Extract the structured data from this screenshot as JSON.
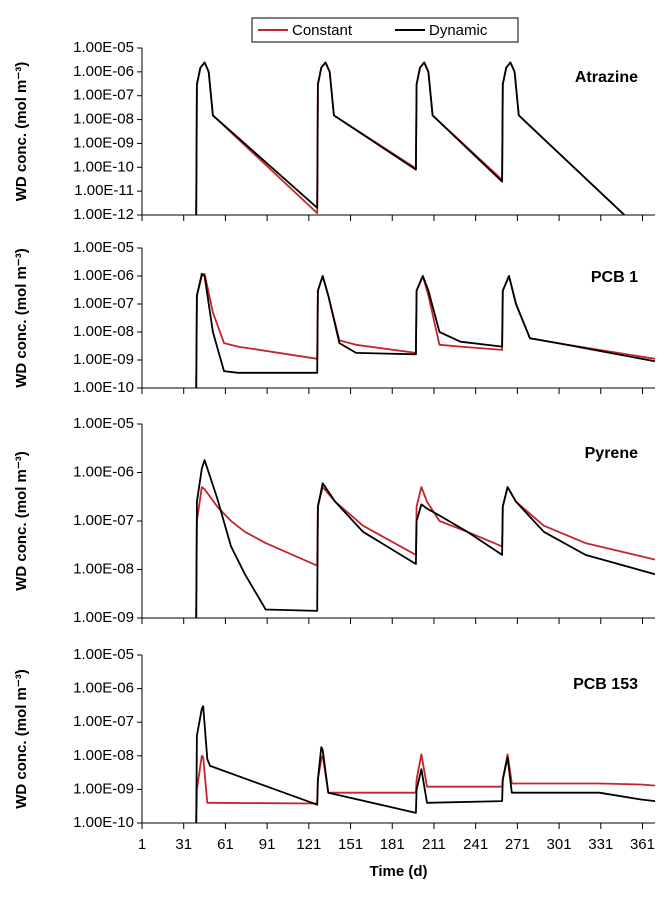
{
  "chart_data": [
    {
      "type": "line",
      "title": "Atrazine",
      "ylabel": "WD conc. (mol m⁻³)",
      "log_scale": true,
      "ylim": [
        1e-12,
        1e-05
      ],
      "yticks": [
        {
          "value": 1e-12,
          "label": "1.00E-12"
        },
        {
          "value": 1e-11,
          "label": "1.00E-11"
        },
        {
          "value": 1e-10,
          "label": "1.00E-10"
        },
        {
          "value": 1e-09,
          "label": "1.00E-09"
        },
        {
          "value": 1e-08,
          "label": "1.00E-08"
        },
        {
          "value": 1e-07,
          "label": "1.00E-07"
        },
        {
          "value": 1e-06,
          "label": "1.00E-06"
        },
        {
          "value": 1e-05,
          "label": "1.00E-05"
        }
      ],
      "x": [
        40,
        40.5,
        43,
        46,
        49,
        52,
        127,
        127.5,
        130,
        133,
        136,
        139,
        198,
        198.5,
        201,
        204,
        207,
        210,
        260,
        260.5,
        263,
        266,
        269,
        272,
        348
      ],
      "series": [
        {
          "name": "Constant",
          "color": "#c0262b",
          "values": [
            1e-12,
            3e-07,
            1.5e-06,
            2.5e-06,
            1e-06,
            1.5e-08,
            1.2e-12,
            3e-07,
            1.5e-06,
            2.5e-06,
            1e-06,
            1.5e-08,
            9e-11,
            3e-07,
            1.5e-06,
            2.5e-06,
            1e-06,
            1.5e-08,
            3e-11,
            3e-07,
            1.5e-06,
            2.5e-06,
            1e-06,
            1.5e-08,
            1e-12
          ]
        },
        {
          "name": "Dynamic",
          "color": "#000000",
          "values": [
            1e-12,
            3e-07,
            1.5e-06,
            2.5e-06,
            1e-06,
            1.5e-08,
            2e-12,
            3e-07,
            1.5e-06,
            2.5e-06,
            1e-06,
            1.5e-08,
            8e-11,
            3e-07,
            1.5e-06,
            2.5e-06,
            1e-06,
            1.5e-08,
            2.5e-11,
            3e-07,
            1.5e-06,
            2.5e-06,
            1e-06,
            1.5e-08,
            1e-12
          ]
        }
      ]
    },
    {
      "type": "line",
      "title": "PCB 1",
      "ylabel": "WD conc. (mol m⁻³)",
      "log_scale": true,
      "ylim": [
        1e-10,
        1e-05
      ],
      "yticks": [
        {
          "value": 1e-10,
          "label": "1.00E-10"
        },
        {
          "value": 1e-09,
          "label": "1.00E-09"
        },
        {
          "value": 1e-08,
          "label": "1.00E-08"
        },
        {
          "value": 1e-07,
          "label": "1.00E-07"
        },
        {
          "value": 1e-06,
          "label": "1.00E-06"
        },
        {
          "value": 1e-05,
          "label": "1.00E-05"
        }
      ],
      "x": [
        40,
        40.5,
        44,
        46,
        52,
        60,
        70,
        127,
        127.5,
        131,
        135,
        143,
        155,
        198,
        198.5,
        203,
        207,
        215,
        230,
        260,
        260.5,
        265,
        270,
        280,
        300,
        370
      ],
      "series": [
        {
          "color": "#c0262b",
          "values": [
            1e-10,
            2e-07,
            1e-06,
            1.2e-06,
            5e-08,
            4e-09,
            3e-09,
            1.1e-09,
            3e-07,
            1e-06,
            2e-07,
            5e-09,
            3.5e-09,
            1.8e-09,
            3e-07,
            1e-06,
            2e-07,
            3.5e-09,
            3e-09,
            2.3e-09,
            3e-07,
            1e-06,
            1e-07,
            6e-09,
            4e-09,
            1.1e-09
          ]
        },
        {
          "color": "#000000",
          "values": [
            1e-10,
            2e-07,
            1.2e-06,
            1e-06,
            1e-08,
            4e-10,
            3.5e-10,
            3.5e-10,
            3e-07,
            1e-06,
            2e-07,
            4e-09,
            1.8e-09,
            1.6e-09,
            3e-07,
            1e-06,
            3e-07,
            1e-08,
            4.5e-09,
            3e-09,
            3e-07,
            1e-06,
            1e-07,
            6e-09,
            4e-09,
            9e-10
          ]
        }
      ]
    },
    {
      "type": "line",
      "title": "Pyrene",
      "ylabel": "WD conc. (mol m⁻³)",
      "log_scale": true,
      "ylim": [
        1e-09,
        1e-05
      ],
      "yticks": [
        {
          "value": 1e-09,
          "label": "1.00E-09"
        },
        {
          "value": 1e-08,
          "label": "1.00E-08"
        },
        {
          "value": 1e-07,
          "label": "1.00E-07"
        },
        {
          "value": 1e-06,
          "label": "1.00E-06"
        },
        {
          "value": 1e-05,
          "label": "1.00E-05"
        }
      ],
      "x": [
        40,
        40.5,
        44,
        46,
        55,
        65,
        75,
        90,
        127,
        127.5,
        131,
        140,
        160,
        198,
        198.5,
        202,
        206,
        215,
        235,
        260,
        260.5,
        264,
        270,
        290,
        320,
        370
      ],
      "series": [
        {
          "color": "#c0262b",
          "values": [
            1e-09,
            1e-07,
            5e-07,
            4.5e-07,
            2e-07,
            1e-07,
            6e-08,
            3.5e-08,
            1.2e-08,
            2e-07,
            5e-07,
            2.5e-07,
            8e-08,
            2e-08,
            2e-07,
            5e-07,
            2.5e-07,
            1e-07,
            6e-08,
            3e-08,
            2e-07,
            5e-07,
            2.5e-07,
            8e-08,
            3.5e-08,
            1.6e-08
          ]
        },
        {
          "color": "#000000",
          "values": [
            1e-09,
            2.5e-07,
            1.2e-06,
            1.8e-06,
            3e-07,
            3e-08,
            8e-09,
            1.5e-09,
            1.4e-09,
            2e-07,
            6e-07,
            2.5e-07,
            6e-08,
            1.3e-08,
            1e-07,
            2.2e-07,
            1.8e-07,
            1.3e-07,
            6e-08,
            2e-08,
            2e-07,
            5e-07,
            2.5e-07,
            6e-08,
            2e-08,
            8e-09
          ]
        }
      ]
    },
    {
      "type": "line",
      "title": "PCB 153",
      "ylabel": "WD conc. (mol m⁻³)",
      "xlabel": "Time (d)",
      "log_scale": true,
      "ylim": [
        1e-10,
        1e-05
      ],
      "yticks": [
        {
          "value": 1e-10,
          "label": "1.00E-10"
        },
        {
          "value": 1e-09,
          "label": "1.00E-09"
        },
        {
          "value": 1e-08,
          "label": "1.00E-08"
        },
        {
          "value": 1e-07,
          "label": "1.00E-07"
        },
        {
          "value": 1e-06,
          "label": "1.00E-06"
        },
        {
          "value": 1e-05,
          "label": "1.00E-05"
        }
      ],
      "xlim": [
        1,
        370
      ],
      "xticks": [
        1,
        31,
        61,
        91,
        121,
        151,
        181,
        211,
        241,
        271,
        301,
        331,
        361
      ],
      "x": [
        40,
        40.5,
        44,
        45,
        48,
        50,
        127,
        127.5,
        130,
        131,
        135,
        198,
        198.5,
        202,
        206,
        260,
        260.5,
        264,
        267,
        330,
        360,
        370
      ],
      "series": [
        {
          "color": "#c0262b",
          "values": [
            1e-10,
            1e-09,
            1e-08,
            9e-09,
            4e-10,
            4e-10,
            3.8e-10,
            2e-09,
            8e-09,
            1e-08,
            8e-10,
            8e-10,
            2e-09,
            1.1e-08,
            1.2e-09,
            1.2e-09,
            2e-09,
            1.1e-08,
            1.5e-09,
            1.5e-09,
            1.4e-09,
            1.3e-09
          ]
        },
        {
          "color": "#000000",
          "values": [
            1e-10,
            4e-08,
            2.5e-07,
            3e-07,
            8e-09,
            5e-09,
            3.5e-10,
            2e-09,
            1.8e-08,
            1.5e-08,
            8e-10,
            2e-10,
            1e-09,
            4e-09,
            4e-10,
            4.5e-10,
            2e-09,
            9e-09,
            8e-10,
            8e-10,
            5e-10,
            4.5e-10
          ]
        }
      ]
    }
  ]
}
